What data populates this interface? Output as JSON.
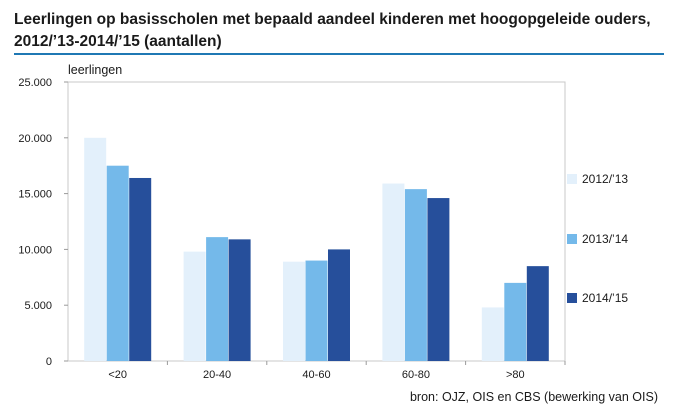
{
  "title": "Leerlingen op basisscholen met bepaald aandeel kinderen met hoogopgeleide ouders, 2012/’13-2014/’15 (aantallen)",
  "source": "bron: OJZ, OIS en CBS (bewerking van OIS)",
  "chart_data": {
    "type": "bar",
    "title": "Leerlingen op basisscholen met bepaald aandeel kinderen met hoogopgeleide ouders, 2012/’13-2014/’15 (aantallen)",
    "ylabel": "leerlingen",
    "xlabel": "",
    "categories": [
      "<20",
      "20-40",
      "40-60",
      "60-80",
      ">80"
    ],
    "ylim": [
      0,
      25000
    ],
    "yticks": [
      0,
      5000,
      10000,
      15000,
      20000,
      25000
    ],
    "ytick_labels": [
      "0",
      "5.000",
      "10.000",
      "15.000",
      "20.000",
      "25.000"
    ],
    "grid": false,
    "legend_position": "right",
    "series": [
      {
        "name": "2012/’13",
        "color": "#e3f0fb",
        "values": [
          20000,
          9800,
          8900,
          15900,
          4800
        ]
      },
      {
        "name": "2013/’14",
        "color": "#74b9ea",
        "values": [
          17500,
          11100,
          9000,
          15400,
          7000
        ]
      },
      {
        "name": "2014/’15",
        "color": "#264f9b",
        "values": [
          16400,
          10900,
          10000,
          14600,
          8500
        ]
      }
    ]
  }
}
